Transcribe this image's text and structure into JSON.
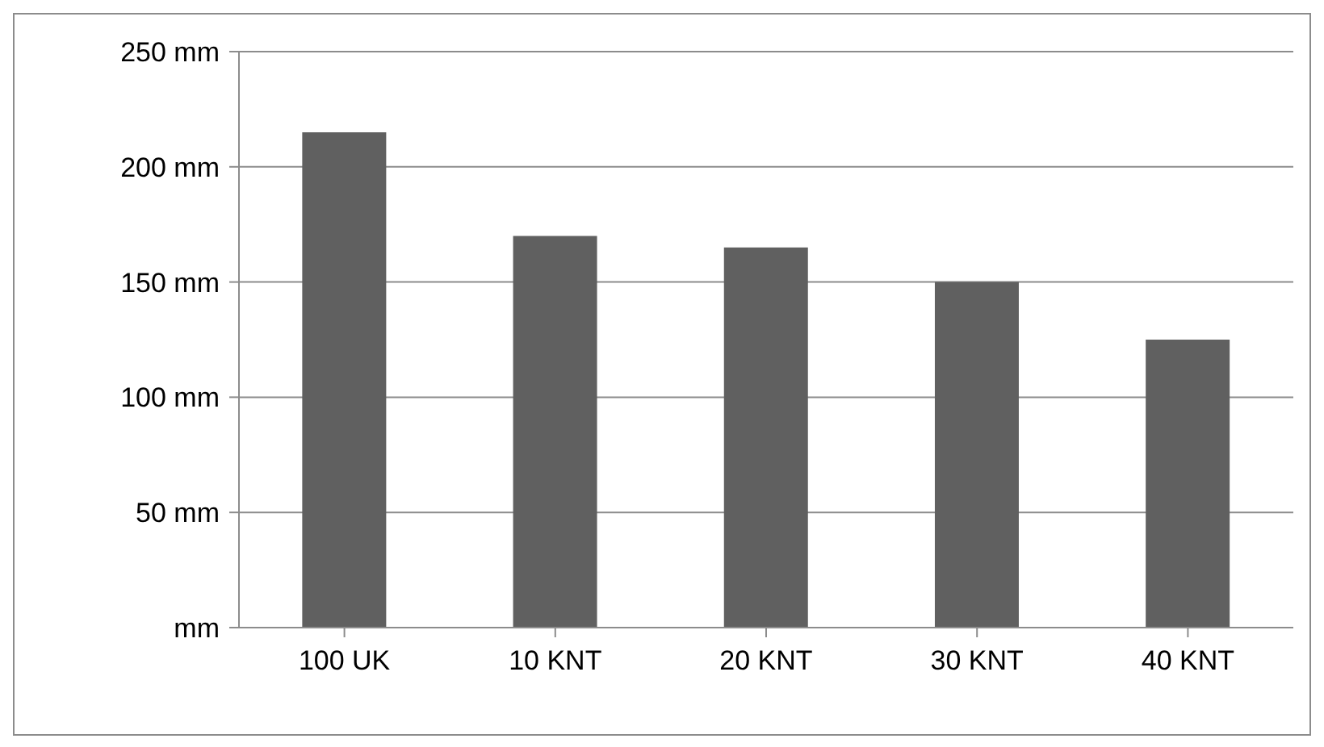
{
  "chart_data": {
    "type": "bar",
    "categories": [
      "100 UK",
      "10 KNT",
      "20 KNT",
      "30 KNT",
      "40 KNT"
    ],
    "values": [
      215,
      170,
      165,
      150,
      125
    ],
    "color": "#606060",
    "ylim": [
      0,
      250
    ],
    "yticks": [
      {
        "value": 0,
        "label": "mm"
      },
      {
        "value": 50,
        "label": "50 mm"
      },
      {
        "value": 100,
        "label": "100 mm"
      },
      {
        "value": 150,
        "label": "150 mm"
      },
      {
        "value": 200,
        "label": "200 mm"
      },
      {
        "value": 250,
        "label": "250 mm"
      }
    ],
    "grid": "y"
  }
}
